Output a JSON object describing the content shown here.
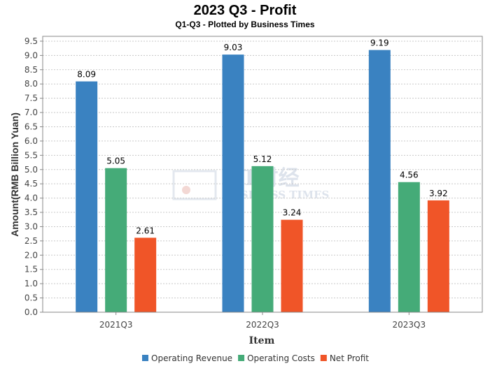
{
  "chart_data": {
    "type": "bar",
    "title": "2023 Q3 - Profit",
    "subtitle": "Q1-Q3 - Plotted by Business Times",
    "xlabel": "Item",
    "ylabel": "Amount(RMB Billion Yuan)",
    "categories": [
      "2021Q3",
      "2022Q3",
      "2023Q3"
    ],
    "series": [
      {
        "name": "Operating Revenue",
        "color": "#3a82c1",
        "values": [
          8.09,
          9.03,
          9.19
        ]
      },
      {
        "name": "Operating Costs",
        "color": "#45ab78",
        "values": [
          5.05,
          5.12,
          4.56
        ]
      },
      {
        "name": "Net Profit",
        "color": "#f05528",
        "values": [
          2.61,
          3.24,
          3.92
        ]
      }
    ],
    "ylim": [
      0,
      9.67
    ],
    "yticks": [
      "0.0",
      "0.5",
      "1.0",
      "1.5",
      "2.0",
      "2.5",
      "3.0",
      "3.5",
      "4.0",
      "4.5",
      "5.0",
      "5.5",
      "6.0",
      "6.5",
      "7.0",
      "7.5",
      "8.0",
      "8.5",
      "9.0",
      "9.5"
    ],
    "grid": true,
    "legend_position": "bottom",
    "watermark": "BT财经 BUSINESS TIMES"
  }
}
